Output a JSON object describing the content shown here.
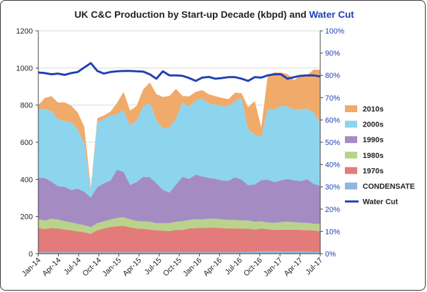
{
  "chart_data": {
    "type": "area",
    "title": {
      "main": "UK C&C Production by Start-up Decade (kbpd) and ",
      "highlight": "Water Cut",
      "highlight_color": "#1f3fb5"
    },
    "stacked": true,
    "y_left": {
      "min": 0,
      "max": 1200,
      "ticks": [
        "0",
        "200",
        "400",
        "600",
        "800",
        "1000",
        "1200"
      ]
    },
    "y_right": {
      "min": 0,
      "max": 100,
      "ticks": [
        "0%",
        "10%",
        "20%",
        "30%",
        "40%",
        "50%",
        "60%",
        "70%",
        "80%",
        "90%",
        "100%"
      ],
      "color": "#1f3fb5"
    },
    "x_tick_labels": [
      "Jan-14",
      "Apr-14",
      "Jul-14",
      "Oct-14",
      "Jan-15",
      "Apr-15",
      "Jul-15",
      "Oct-15",
      "Jan-16",
      "Apr-16",
      "Jul-16",
      "Oct-16",
      "Jan-17",
      "Apr-17",
      "Jul-17"
    ],
    "series": [
      {
        "name": "CONDENSATE",
        "color": "#8fb6dc",
        "values": [
          8,
          8,
          8,
          8,
          8,
          8,
          8,
          8,
          8,
          8,
          8,
          8,
          8,
          8,
          8,
          8,
          8,
          8,
          8,
          8,
          8,
          8,
          8,
          8,
          8,
          8,
          8,
          8,
          8,
          8,
          8,
          9,
          10,
          12,
          14,
          14,
          14,
          14,
          12,
          12,
          12,
          12,
          11,
          10
        ]
      },
      {
        "name": "1970s",
        "color": "#e37b7a",
        "values": [
          130,
          125,
          130,
          128,
          122,
          118,
          112,
          108,
          100,
          118,
          128,
          136,
          140,
          142,
          135,
          128,
          126,
          122,
          118,
          116,
          114,
          120,
          120,
          128,
          130,
          130,
          132,
          132,
          130,
          128,
          128,
          126,
          125,
          118,
          122,
          118,
          114,
          116,
          118,
          118,
          116,
          116,
          114,
          112
        ]
      },
      {
        "name": "1980s",
        "color": "#b9d48a",
        "values": [
          48,
          45,
          50,
          48,
          45,
          42,
          40,
          38,
          35,
          38,
          38,
          40,
          44,
          46,
          42,
          40,
          40,
          42,
          38,
          40,
          42,
          44,
          46,
          46,
          48,
          46,
          48,
          48,
          46,
          46,
          46,
          44,
          44,
          42,
          38,
          36,
          38,
          40,
          42,
          40,
          38,
          38,
          36,
          38
        ]
      },
      {
        "name": "1990s",
        "color": "#a48cc3",
        "values": [
          224,
          230,
          200,
          180,
          185,
          175,
          190,
          180,
          160,
          195,
          205,
          210,
          260,
          245,
          185,
          210,
          240,
          240,
          215,
          180,
          165,
          200,
          240,
          220,
          240,
          232,
          220,
          215,
          210,
          210,
          230,
          220,
          190,
          200,
          222,
          230,
          220,
          225,
          230,
          225,
          225,
          235,
          215,
          205
        ]
      },
      {
        "name": "2000s",
        "color": "#8dd4ee",
        "values": [
          370,
          370,
          380,
          360,
          355,
          365,
          320,
          260,
          40,
          350,
          345,
          350,
          300,
          330,
          320,
          330,
          380,
          400,
          340,
          330,
          350,
          355,
          400,
          390,
          400,
          420,
          400,
          400,
          400,
          400,
          410,
          440,
          300,
          270,
          230,
          380,
          390,
          400,
          390,
          380,
          385,
          380,
          385,
          335
        ]
      },
      {
        "name": "2010s",
        "color": "#f0aa6a",
        "values": [
          20,
          60,
          80,
          90,
          100,
          90,
          90,
          90,
          10,
          20,
          20,
          20,
          60,
          100,
          80,
          80,
          90,
          110,
          140,
          170,
          170,
          160,
          35,
          55,
          45,
          45,
          50,
          45,
          45,
          40,
          45,
          25,
          120,
          180,
          55,
          180,
          200,
          180,
          175,
          160,
          180,
          180,
          230,
          290
        ]
      }
    ],
    "water_cut": {
      "name": "Water Cut",
      "color": "#1f3fb5",
      "values": [
        81.3,
        81,
        80.5,
        80.8,
        80.2,
        81,
        81.5,
        83.5,
        85.5,
        82,
        80.8,
        81.5,
        81.8,
        82,
        82,
        81.8,
        81.7,
        80.5,
        78.5,
        81.8,
        80,
        80,
        79.8,
        78.8,
        77.5,
        79,
        79.3,
        78.5,
        78.8,
        79.2,
        79.2,
        78.5,
        77.5,
        79.2,
        79,
        80,
        80.5,
        80.5,
        78.5,
        79.2,
        79.8,
        80,
        80,
        79.5
      ]
    },
    "legend": {
      "position": "right",
      "entries": [
        "2010s",
        "2000s",
        "1990s",
        "1980s",
        "1970s",
        "CONDENSATE",
        "Water Cut"
      ]
    },
    "grid": "horizontal"
  }
}
